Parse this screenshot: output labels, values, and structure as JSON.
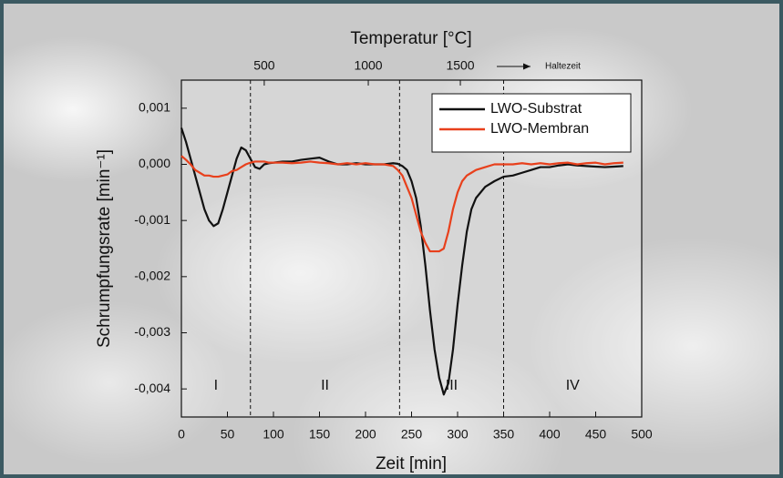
{
  "chart_data": {
    "type": "line",
    "x_label": "Zeit [min]",
    "y_label": "Schrumpfungsrate [min⁻¹]",
    "top_axis": {
      "label": "Temperatur [°C]",
      "ticks": [
        500,
        1000,
        1500
      ],
      "tick_positions": [
        90,
        203,
        303
      ],
      "note": "Haltezeit"
    },
    "x": [
      0,
      5,
      10,
      15,
      20,
      25,
      30,
      35,
      40,
      45,
      50,
      55,
      60,
      65,
      70,
      75,
      80,
      85,
      90,
      95,
      100,
      110,
      120,
      130,
      140,
      150,
      160,
      170,
      180,
      190,
      200,
      210,
      220,
      230,
      235,
      240,
      245,
      250,
      255,
      260,
      265,
      270,
      275,
      280,
      285,
      290,
      295,
      300,
      305,
      310,
      315,
      320,
      330,
      340,
      350,
      360,
      370,
      380,
      390,
      400,
      410,
      420,
      430,
      440,
      450,
      460,
      470,
      480
    ],
    "series": [
      {
        "name": "LWO-Substrat",
        "color": "#111111",
        "values": [
          0.00065,
          0.0004,
          0.0001,
          -0.0002,
          -0.0005,
          -0.0008,
          -0.001,
          -0.0011,
          -0.00105,
          -0.0008,
          -0.0005,
          -0.0002,
          0.0001,
          0.0003,
          0.00025,
          0.0001,
          -5e-05,
          -8e-05,
          0,
          2e-05,
          3e-05,
          5e-05,
          5e-05,
          8e-05,
          0.0001,
          0.00012,
          5e-05,
          0,
          0,
          2e-05,
          0,
          0,
          0,
          2e-05,
          1e-05,
          -3e-05,
          -0.0001,
          -0.0003,
          -0.0006,
          -0.0011,
          -0.0018,
          -0.0026,
          -0.0033,
          -0.0038,
          -0.0041,
          -0.0039,
          -0.0033,
          -0.0025,
          -0.0018,
          -0.0012,
          -0.0008,
          -0.0006,
          -0.0004,
          -0.0003,
          -0.00022,
          -0.0002,
          -0.00015,
          -0.0001,
          -5e-05,
          -5e-05,
          -2e-05,
          0,
          -2e-05,
          -3e-05,
          -4e-05,
          -5e-05,
          -4e-05,
          -3e-05
        ]
      },
      {
        "name": "LWO-Membran",
        "color": "#e8401c",
        "values": [
          0.00015,
          8e-05,
          0,
          -0.0001,
          -0.00015,
          -0.0002,
          -0.0002,
          -0.00022,
          -0.00022,
          -0.0002,
          -0.00018,
          -0.00012,
          -0.0001,
          -5e-05,
          0,
          3e-05,
          5e-05,
          5e-05,
          5e-05,
          3e-05,
          3e-05,
          3e-05,
          2e-05,
          3e-05,
          5e-05,
          3e-05,
          2e-05,
          0,
          2e-05,
          0,
          2e-05,
          0,
          0,
          -3e-05,
          -0.0001,
          -0.0002,
          -0.0004,
          -0.0006,
          -0.0009,
          -0.0012,
          -0.0014,
          -0.00155,
          -0.00155,
          -0.00155,
          -0.0015,
          -0.0012,
          -0.0008,
          -0.0005,
          -0.0003,
          -0.0002,
          -0.00015,
          -0.0001,
          -5e-05,
          0,
          0,
          0,
          2e-05,
          0,
          2e-05,
          0,
          2e-05,
          3e-05,
          0,
          2e-05,
          3e-05,
          0,
          2e-05,
          3e-05
        ]
      }
    ],
    "xlim": [
      0,
      500
    ],
    "xticks": [
      0,
      50,
      100,
      150,
      200,
      250,
      300,
      350,
      400,
      450,
      500
    ],
    "ylim": [
      -0.0045,
      0.0015
    ],
    "yticks": [
      {
        "value": -0.004,
        "label": "-0,004"
      },
      {
        "value": -0.003,
        "label": "-0,003"
      },
      {
        "value": -0.002,
        "label": "-0,002"
      },
      {
        "value": -0.001,
        "label": "-0,001"
      },
      {
        "value": 0,
        "label": "0,000"
      },
      {
        "value": 0.001,
        "label": "0,001"
      }
    ],
    "dividers": [
      75,
      237,
      350
    ],
    "regions": [
      "I",
      "II",
      "III",
      "IV"
    ],
    "legend": "upper right"
  }
}
